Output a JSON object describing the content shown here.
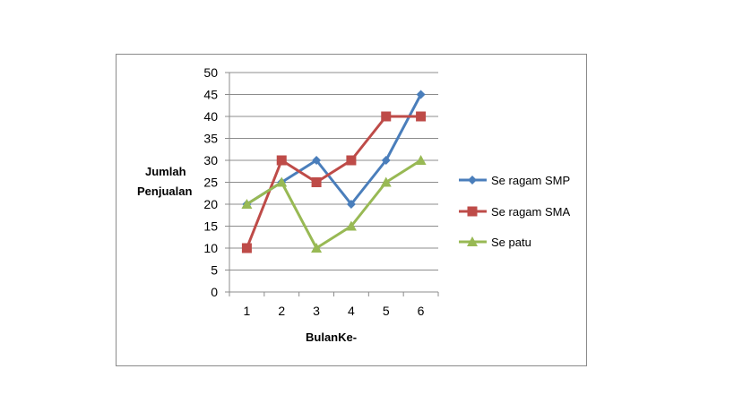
{
  "chart_data": {
    "type": "line",
    "title": "",
    "xlabel": "BulanKe-",
    "ylabel": [
      "Jumlah",
      "Penjualan"
    ],
    "categories": [
      "1",
      "2",
      "3",
      "4",
      "5",
      "6"
    ],
    "ylim": [
      0,
      50
    ],
    "yticks": [
      0,
      5,
      10,
      15,
      20,
      25,
      30,
      35,
      40,
      45,
      50
    ],
    "grid": true,
    "legend_position": "right",
    "series": [
      {
        "name": "Se ragam SMP",
        "values": [
          20,
          25,
          30,
          20,
          30,
          45
        ],
        "color": "#4a7ebb",
        "marker": "diamond"
      },
      {
        "name": "Se ragam SMA",
        "values": [
          10,
          30,
          25,
          30,
          40,
          40
        ],
        "color": "#be4b48",
        "marker": "square"
      },
      {
        "name": "Se patu",
        "values": [
          20,
          25,
          10,
          15,
          25,
          30
        ],
        "color": "#98b954",
        "marker": "triangle"
      }
    ]
  }
}
